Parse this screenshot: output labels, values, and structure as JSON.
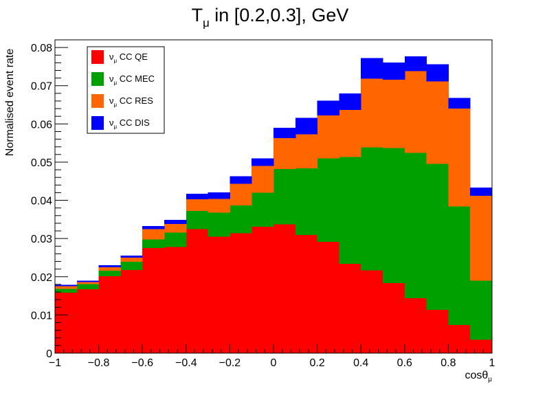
{
  "chart_data": {
    "type": "bar",
    "stacked": true,
    "title": {
      "main": "T",
      "sub": "μ",
      "rest": " in [0.2,0.3], GeV"
    },
    "xlabel": {
      "main": "cosθ",
      "sub": "μ"
    },
    "ylabel": "Normalised event rate",
    "xlim": [
      -1,
      1
    ],
    "ylim": [
      0,
      0.082
    ],
    "x_ticks": [
      -1,
      -0.8,
      -0.6,
      -0.4,
      -0.2,
      0,
      0.2,
      0.4,
      0.6,
      0.8,
      1
    ],
    "x_tick_labels": [
      "−1",
      "−0.8",
      "−0.6",
      "−0.4",
      "−0.2",
      "0",
      "0.2",
      "0.4",
      "0.6",
      "0.8",
      "1"
    ],
    "y_ticks": [
      0,
      0.01,
      0.02,
      0.03,
      0.04,
      0.05,
      0.06,
      0.07,
      0.08
    ],
    "y_tick_labels": [
      "0",
      "0.01",
      "0.02",
      "0.03",
      "0.04",
      "0.05",
      "0.06",
      "0.07",
      "0.08"
    ],
    "bin_edges": [
      -1,
      -0.9,
      -0.8,
      -0.7,
      -0.6,
      -0.5,
      -0.4,
      -0.3,
      -0.2,
      -0.1,
      0,
      0.1,
      0.2,
      0.3,
      0.4,
      0.5,
      0.6,
      0.7,
      0.8,
      0.9,
      1
    ],
    "legend_position": "top-left",
    "series": [
      {
        "name": "CC QE",
        "nu": "ν",
        "sub": "μ",
        "color": "#ff0000",
        "values": [
          0.0158,
          0.0167,
          0.0201,
          0.0218,
          0.0275,
          0.0278,
          0.0325,
          0.0305,
          0.0314,
          0.0331,
          0.0337,
          0.0309,
          0.0291,
          0.0234,
          0.0217,
          0.0183,
          0.0144,
          0.0113,
          0.0074,
          0.0035
        ]
      },
      {
        "name": "CC MEC",
        "nu": "ν",
        "sub": "μ",
        "color": "#00a000",
        "values": [
          0.001,
          0.0014,
          0.0015,
          0.0021,
          0.0023,
          0.0038,
          0.0047,
          0.0063,
          0.0073,
          0.0089,
          0.0145,
          0.0175,
          0.0219,
          0.0279,
          0.0322,
          0.0354,
          0.038,
          0.0382,
          0.031,
          0.0155
        ]
      },
      {
        "name": "CC RES",
        "nu": "ν",
        "sub": "μ",
        "color": "#ff6600",
        "values": [
          0.0007,
          0.0005,
          0.0009,
          0.0011,
          0.0027,
          0.0022,
          0.0031,
          0.0036,
          0.0056,
          0.007,
          0.0081,
          0.0089,
          0.0112,
          0.0124,
          0.0179,
          0.0179,
          0.0214,
          0.0216,
          0.0256,
          0.0222
        ]
      },
      {
        "name": "CC DIS",
        "nu": "ν",
        "sub": "μ",
        "color": "#0000ff",
        "values": [
          0.0004,
          0.0004,
          0.0005,
          0.0005,
          0.0008,
          0.0011,
          0.0014,
          0.0017,
          0.002,
          0.002,
          0.0027,
          0.0043,
          0.0039,
          0.0043,
          0.0054,
          0.0045,
          0.0039,
          0.0045,
          0.0028,
          0.0021
        ]
      }
    ]
  }
}
